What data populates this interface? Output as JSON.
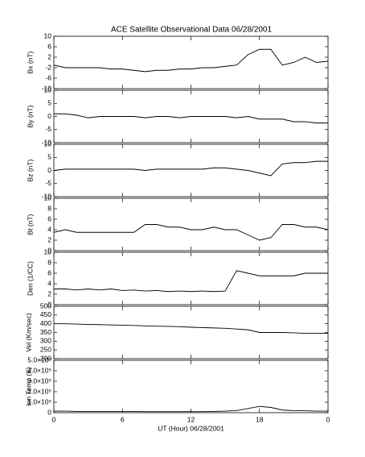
{
  "chart_data": [
    {
      "type": "line",
      "title": "ACE Satellite Observational Data   06/28/2001",
      "ylabel": "Bx (nT)",
      "x": [
        0,
        1,
        2,
        3,
        4,
        5,
        6,
        7,
        8,
        9,
        10,
        11,
        12,
        13,
        14,
        15,
        16,
        17,
        18,
        19,
        20,
        21,
        22,
        23,
        24
      ],
      "values": [
        -1,
        -2,
        -2,
        -2,
        -2,
        -2.5,
        -2.5,
        -3,
        -3.5,
        -3,
        -3,
        -2.5,
        -2.5,
        -2,
        -2,
        -1.5,
        -1,
        3,
        5,
        5,
        -1,
        0,
        2,
        0,
        0.5
      ],
      "xlim": [
        0,
        24
      ],
      "ylim": [
        -10,
        10
      ],
      "yticks": [
        10,
        6,
        2,
        -2,
        -6,
        -10
      ],
      "color": "#000000"
    },
    {
      "type": "line",
      "ylabel": "By (nT)",
      "x": [
        0,
        1,
        2,
        3,
        4,
        5,
        6,
        7,
        8,
        9,
        10,
        11,
        12,
        13,
        14,
        15,
        16,
        17,
        18,
        19,
        20,
        21,
        22,
        23,
        24
      ],
      "values": [
        1,
        1,
        0.5,
        -0.5,
        0,
        0,
        0,
        0,
        -0.5,
        0,
        0,
        -0.5,
        0,
        0,
        0,
        0,
        -0.5,
        0,
        -1,
        -1,
        -1,
        -2,
        -2,
        -2.5,
        -2.5
      ],
      "xlim": [
        0,
        24
      ],
      "ylim": [
        -10,
        10
      ],
      "yticks": [
        10,
        5,
        0,
        -5,
        -10
      ],
      "color": "#000000"
    },
    {
      "type": "line",
      "ylabel": "Bz (nT)",
      "x": [
        0,
        1,
        2,
        3,
        4,
        5,
        6,
        7,
        8,
        9,
        10,
        11,
        12,
        13,
        14,
        15,
        16,
        17,
        18,
        19,
        20,
        21,
        22,
        23,
        24
      ],
      "values": [
        0,
        0.5,
        0.5,
        0.5,
        0.5,
        0.5,
        0.5,
        0.5,
        0,
        0.5,
        0.5,
        0.5,
        0.5,
        0.5,
        1,
        1,
        0.5,
        0,
        -1,
        -2,
        2.5,
        3,
        3,
        3.5,
        3.5
      ],
      "xlim": [
        0,
        24
      ],
      "ylim": [
        -10,
        10
      ],
      "yticks": [
        10,
        5,
        0,
        -5,
        -10
      ],
      "color": "#000000"
    },
    {
      "type": "line",
      "ylabel": "Bt (nT)",
      "x": [
        0,
        1,
        2,
        3,
        4,
        5,
        6,
        7,
        8,
        9,
        10,
        11,
        12,
        13,
        14,
        15,
        16,
        17,
        18,
        19,
        20,
        21,
        22,
        23,
        24
      ],
      "values": [
        3.5,
        4,
        3.5,
        3.5,
        3.5,
        3.5,
        3.5,
        3.5,
        5,
        5,
        4.5,
        4.5,
        4,
        4,
        4.5,
        4,
        4,
        3,
        2,
        2.5,
        5,
        5,
        4.5,
        4.5,
        4
      ],
      "xlim": [
        0,
        24
      ],
      "ylim": [
        0,
        10
      ],
      "yticks": [
        10,
        8,
        6,
        4,
        2,
        0
      ],
      "color": "#000000"
    },
    {
      "type": "line",
      "ylabel": "Den (1/CC)",
      "x": [
        0,
        1,
        2,
        3,
        4,
        5,
        6,
        7,
        8,
        9,
        10,
        11,
        12,
        13,
        14,
        15,
        16,
        17,
        18,
        19,
        20,
        21,
        22,
        23,
        24
      ],
      "values": [
        3,
        3,
        2.8,
        3,
        2.8,
        3,
        2.7,
        2.8,
        2.6,
        2.7,
        2.5,
        2.6,
        2.5,
        2.6,
        2.5,
        2.6,
        6.5,
        6,
        5.5,
        5.5,
        5.5,
        5.5,
        6,
        6,
        6
      ],
      "xlim": [
        0,
        24
      ],
      "ylim": [
        0,
        10
      ],
      "yticks": [
        10,
        8,
        6,
        4,
        2,
        0
      ],
      "color": "#000000"
    },
    {
      "type": "line",
      "ylabel": "Vel (Km/sec)",
      "x": [
        0,
        1,
        2,
        3,
        4,
        5,
        6,
        7,
        8,
        9,
        10,
        11,
        12,
        13,
        14,
        15,
        16,
        17,
        18,
        19,
        20,
        21,
        22,
        23,
        24
      ],
      "values": [
        400,
        400,
        398,
        396,
        395,
        393,
        392,
        390,
        388,
        386,
        385,
        383,
        380,
        378,
        376,
        374,
        370,
        365,
        350,
        350,
        350,
        348,
        345,
        345,
        345
      ],
      "xlim": [
        0,
        24
      ],
      "ylim": [
        200,
        500
      ],
      "yticks": [
        500,
        450,
        400,
        350,
        300,
        250,
        200
      ],
      "color": "#000000"
    },
    {
      "type": "line",
      "ylabel": "Ion Temp (K)",
      "xlabel": "UT (Hour)  06/28/2001",
      "x": [
        0,
        1,
        2,
        3,
        4,
        5,
        6,
        7,
        8,
        9,
        10,
        11,
        12,
        13,
        14,
        15,
        16,
        17,
        18,
        19,
        20,
        21,
        22,
        23,
        24
      ],
      "values": [
        15000,
        15000,
        12000,
        12000,
        12000,
        12000,
        11000,
        11000,
        10000,
        10000,
        10000,
        10000,
        10000,
        10000,
        12000,
        15000,
        20000,
        40000,
        60000,
        50000,
        25000,
        20000,
        18000,
        15000,
        15000
      ],
      "xlim": [
        0,
        24
      ],
      "ylim": [
        0,
        500000
      ],
      "yticks": [
        0,
        {
          "value": 100000,
          "label": "1.0×10⁵"
        },
        {
          "value": 200000,
          "label": "2.0×10⁵"
        },
        {
          "value": 300000,
          "label": "3.0×10⁵"
        },
        {
          "value": 400000,
          "label": "4.0×10⁵"
        },
        {
          "value": 500000,
          "label": "5.0×10⁵"
        }
      ],
      "xticks": [
        0,
        6,
        12,
        18,
        {
          "value": 24,
          "label": "0"
        }
      ],
      "color": "#000000"
    }
  ]
}
